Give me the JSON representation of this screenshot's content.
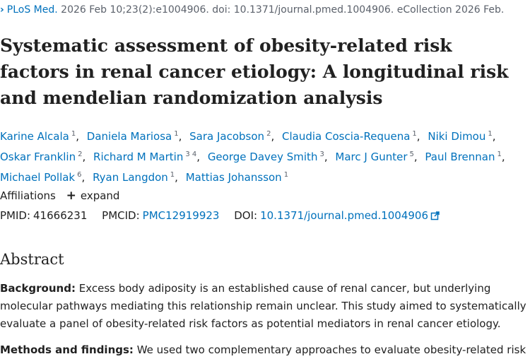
{
  "citation": {
    "journal": "PLoS Med.",
    "details": "2026 Feb 10;23(2):e1004906. doi: 10.1371/journal.pmed.1004906. eCollection 2026 Feb."
  },
  "title": "Systematic assessment of obesity-related risk factors in renal cancer etiology: A longitudinal risk and mendelian randomization analysis",
  "authors": [
    {
      "name": "Karine Alcala",
      "aff": "1"
    },
    {
      "name": "Daniela Mariosa",
      "aff": "1"
    },
    {
      "name": "Sara Jacobson",
      "aff": "2"
    },
    {
      "name": "Claudia Coscia-Requena",
      "aff": "1"
    },
    {
      "name": "Niki Dimou",
      "aff": "1"
    },
    {
      "name": "Oskar Franklin",
      "aff": "2"
    },
    {
      "name": "Richard M Martin",
      "aff": "3 4"
    },
    {
      "name": "George Davey Smith",
      "aff": "3"
    },
    {
      "name": "Marc J Gunter",
      "aff": "5"
    },
    {
      "name": "Paul Brennan",
      "aff": "1"
    },
    {
      "name": "Michael Pollak",
      "aff": "6"
    },
    {
      "name": "Ryan Langdon",
      "aff": "1"
    },
    {
      "name": "Mattias Johansson",
      "aff": "1"
    }
  ],
  "affiliations": {
    "label": "Affiliations",
    "expand_label": "expand"
  },
  "ids": {
    "pmid_label": "PMID:",
    "pmid": "41666231",
    "pmcid_label": "PMCID:",
    "pmcid": "PMC12919923",
    "doi_label": "DOI:",
    "doi": "10.1371/journal.pmed.1004906"
  },
  "abstract": {
    "heading": "Abstract",
    "background_label": "Background:",
    "background_text": "Excess body adiposity is an established cause of renal cancer, but underlying molecular pathways mediating this relationship remain unclear. This study aimed to systematically evaluate a panel of obesity-related risk factors as potential mediators in renal cancer etiology.",
    "methods_label": "Methods and findings:",
    "methods_text": "We used two complementary approaches to evaluate obesity-related risk"
  },
  "colors": {
    "link": "#0071bc",
    "text": "#212121",
    "muted": "#5b616b"
  }
}
